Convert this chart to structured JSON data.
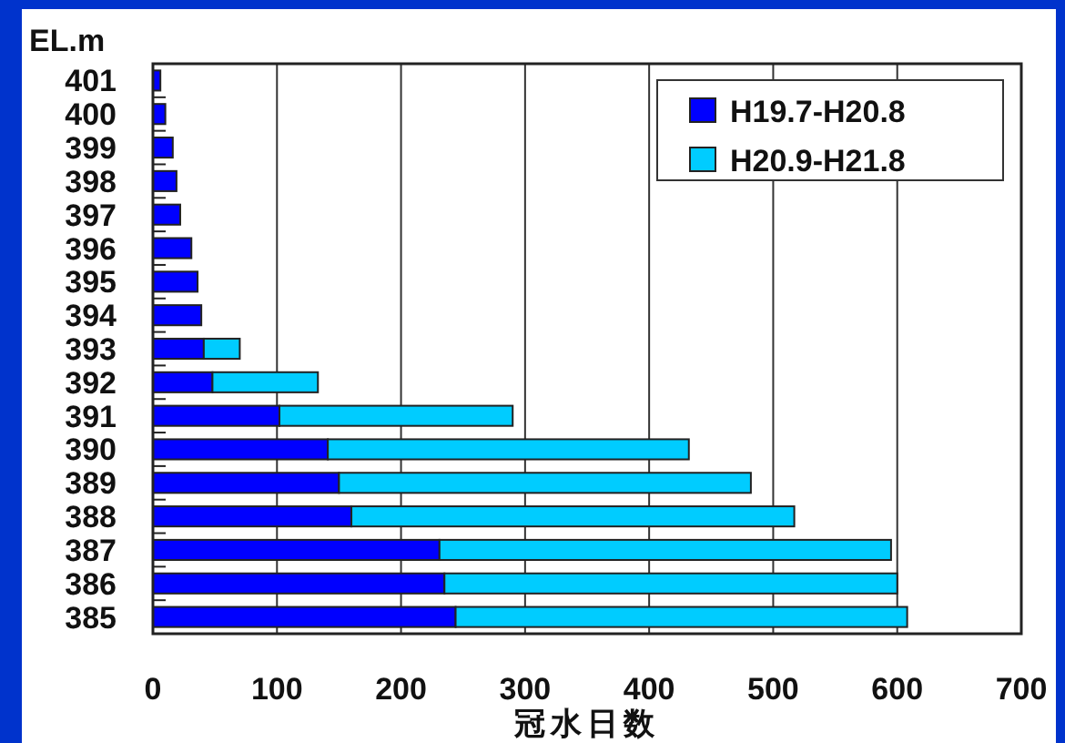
{
  "chart_data": {
    "type": "bar",
    "orientation": "horizontal",
    "stacked": true,
    "xlabel": "冠水日数",
    "ylabel": "EL.m",
    "categories": [
      "401",
      "400",
      "399",
      "398",
      "397",
      "396",
      "395",
      "394",
      "393",
      "392",
      "391",
      "390",
      "389",
      "388",
      "387",
      "386",
      "385"
    ],
    "series": [
      {
        "name": "H19.7-H20.8",
        "color": "#0000ff",
        "values": [
          6,
          10,
          16,
          19,
          22,
          31,
          36,
          39,
          41,
          48,
          102,
          141,
          150,
          160,
          231,
          235,
          244
        ]
      },
      {
        "name": "H20.9-H21.8",
        "color": "#00ccff",
        "values": [
          null,
          null,
          null,
          null,
          null,
          null,
          null,
          null,
          29,
          85,
          188,
          291,
          332,
          357,
          364,
          365,
          364
        ]
      }
    ],
    "xlim": [
      0,
      700
    ],
    "xticks": [
      0,
      100,
      200,
      300,
      400,
      500,
      600,
      700
    ],
    "grid": "x",
    "legend": "top right"
  }
}
